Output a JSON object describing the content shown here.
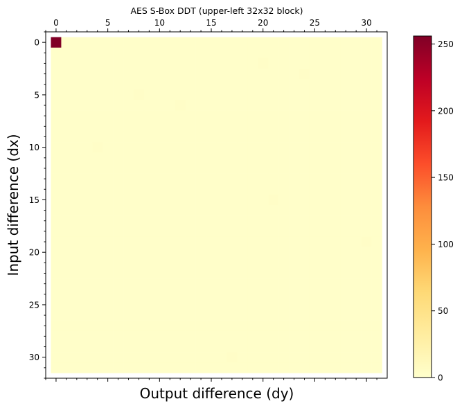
{
  "chart_data": {
    "type": "heatmap",
    "title": "AES S-Box DDT (upper-left 32x32 block)",
    "xlabel": "Output difference (dy)",
    "ylabel": "Input difference (dx)",
    "rows": 32,
    "cols": 32,
    "xlim": [
      -1,
      32
    ],
    "ylim": [
      32,
      -1
    ],
    "x_ticks": [
      0,
      5,
      10,
      15,
      20,
      25,
      30
    ],
    "y_ticks": [
      0,
      5,
      10,
      15,
      20,
      25,
      30
    ],
    "x_axis_position": "top",
    "colormap": "YlOrRd",
    "colorbar": {
      "min": 0,
      "max": 256,
      "ticks": [
        0,
        50,
        100,
        150,
        200,
        250
      ]
    },
    "default_cell_value": 2,
    "cells": [
      {
        "row": 0,
        "col": 0,
        "value": 256
      },
      {
        "row": 2,
        "col": 20,
        "value": 4
      },
      {
        "row": 3,
        "col": 24,
        "value": 4
      },
      {
        "row": 5,
        "col": 8,
        "value": 4
      },
      {
        "row": 6,
        "col": 12,
        "value": 4
      },
      {
        "row": 10,
        "col": 4,
        "value": 4
      },
      {
        "row": 15,
        "col": 21,
        "value": 4
      },
      {
        "row": 19,
        "col": 30,
        "value": 4
      },
      {
        "row": 30,
        "col": 17,
        "value": 4
      }
    ],
    "grid": false
  }
}
